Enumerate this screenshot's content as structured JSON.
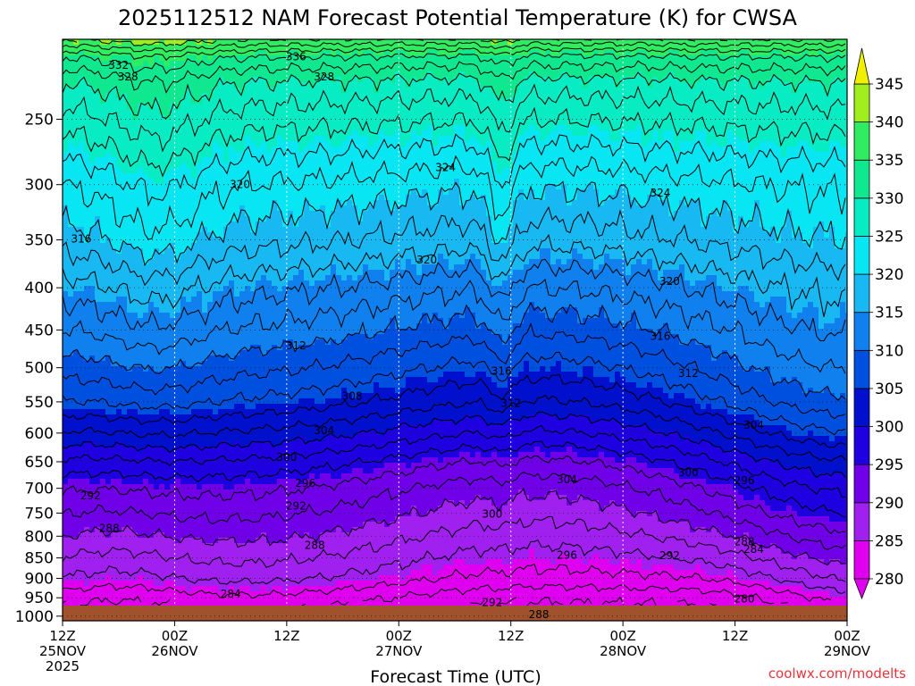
{
  "chart_data": {
    "type": "filled-contour",
    "title": "2025112512 NAM Forecast Potential Temperature (K) for CWSA",
    "xlabel": "Forecast Time (UTC)",
    "ylabel": "",
    "y_axis": {
      "ticks": [
        250,
        300,
        350,
        400,
        450,
        500,
        550,
        600,
        650,
        700,
        750,
        800,
        850,
        900,
        950,
        1000
      ],
      "range": [
        1013,
        200
      ],
      "scale": "log-pressure"
    },
    "x_axis": {
      "range_hours": [
        0,
        84
      ],
      "ticks": [
        {
          "hour": 0,
          "line1": "12Z",
          "line2": "25NOV",
          "line3": "2025"
        },
        {
          "hour": 12,
          "line1": "00Z",
          "line2": "26NOV",
          "line3": ""
        },
        {
          "hour": 24,
          "line1": "12Z",
          "line2": "",
          "line3": ""
        },
        {
          "hour": 36,
          "line1": "00Z",
          "line2": "27NOV",
          "line3": ""
        },
        {
          "hour": 48,
          "line1": "12Z",
          "line2": "",
          "line3": ""
        },
        {
          "hour": 60,
          "line1": "00Z",
          "line2": "28NOV",
          "line3": ""
        },
        {
          "hour": 72,
          "line1": "12Z",
          "line2": "",
          "line3": ""
        },
        {
          "hour": 84,
          "line1": "00Z",
          "line2": "29NOV",
          "line3": ""
        }
      ]
    },
    "grid": true,
    "colorbar": {
      "levels": [
        280,
        285,
        290,
        295,
        300,
        305,
        310,
        315,
        320,
        325,
        330,
        335,
        340,
        345
      ],
      "colors": [
        "#e000f0",
        "#a020f0",
        "#7000e8",
        "#1e00e0",
        "#0010cc",
        "#0050e0",
        "#1080ee",
        "#18b8f2",
        "#08e6f4",
        "#08ecc4",
        "#10e890",
        "#30ec60",
        "#a0ee20",
        "#f0f000"
      ],
      "labels": [
        "280",
        "285",
        "290",
        "295",
        "300",
        "305",
        "310",
        "315",
        "320",
        "325",
        "330",
        "335",
        "340",
        "345"
      ]
    },
    "theta_profile": [
      [
        1000,
        282
      ],
      [
        950,
        284
      ],
      [
        900,
        287
      ],
      [
        850,
        289
      ],
      [
        800,
        291
      ],
      [
        750,
        293
      ],
      [
        700,
        295
      ],
      [
        650,
        298
      ],
      [
        600,
        302
      ],
      [
        550,
        306
      ],
      [
        500,
        309
      ],
      [
        450,
        312
      ],
      [
        400,
        315
      ],
      [
        350,
        319
      ],
      [
        300,
        322
      ],
      [
        250,
        327
      ],
      [
        225,
        330
      ],
      [
        210,
        334
      ],
      [
        200,
        340
      ]
    ],
    "contour_labels": [
      {
        "text": "336",
        "hour": 25,
        "p": 210
      },
      {
        "text": "332",
        "hour": 6,
        "p": 215
      },
      {
        "text": "328",
        "hour": 7,
        "p": 222
      },
      {
        "text": "328",
        "hour": 28,
        "p": 222
      },
      {
        "text": "324",
        "hour": 41,
        "p": 286
      },
      {
        "text": "324",
        "hour": 64,
        "p": 307
      },
      {
        "text": "320",
        "hour": 19,
        "p": 300
      },
      {
        "text": "320",
        "hour": 39,
        "p": 370
      },
      {
        "text": "320",
        "hour": 65,
        "p": 393
      },
      {
        "text": "316",
        "hour": 2,
        "p": 349
      },
      {
        "text": "316",
        "hour": 64,
        "p": 458
      },
      {
        "text": "316",
        "hour": 47,
        "p": 505
      },
      {
        "text": "312",
        "hour": 25,
        "p": 470
      },
      {
        "text": "312",
        "hour": 67,
        "p": 508
      },
      {
        "text": "312",
        "hour": 48,
        "p": 552
      },
      {
        "text": "308",
        "hour": 31,
        "p": 541
      },
      {
        "text": "304",
        "hour": 28,
        "p": 596
      },
      {
        "text": "304",
        "hour": 74,
        "p": 587
      },
      {
        "text": "304",
        "hour": 54,
        "p": 683
      },
      {
        "text": "300",
        "hour": 24,
        "p": 642
      },
      {
        "text": "300",
        "hour": 67,
        "p": 670
      },
      {
        "text": "300",
        "hour": 46,
        "p": 752
      },
      {
        "text": "296",
        "hour": 26,
        "p": 690
      },
      {
        "text": "296",
        "hour": 73,
        "p": 685
      },
      {
        "text": "296",
        "hour": 54,
        "p": 843
      },
      {
        "text": "292",
        "hour": 3,
        "p": 715
      },
      {
        "text": "292",
        "hour": 25,
        "p": 735
      },
      {
        "text": "292",
        "hour": 46,
        "p": 962
      },
      {
        "text": "292",
        "hour": 65,
        "p": 845
      },
      {
        "text": "288",
        "hour": 5,
        "p": 783
      },
      {
        "text": "288",
        "hour": 27,
        "p": 821
      },
      {
        "text": "288",
        "hour": 51,
        "p": 995
      },
      {
        "text": "288",
        "hour": 73,
        "p": 812
      },
      {
        "text": "284",
        "hour": 74,
        "p": 830
      },
      {
        "text": "284",
        "hour": 18,
        "p": 940
      },
      {
        "text": "280",
        "hour": 73,
        "p": 953
      }
    ]
  },
  "credit": "coolwx.com/modelts"
}
